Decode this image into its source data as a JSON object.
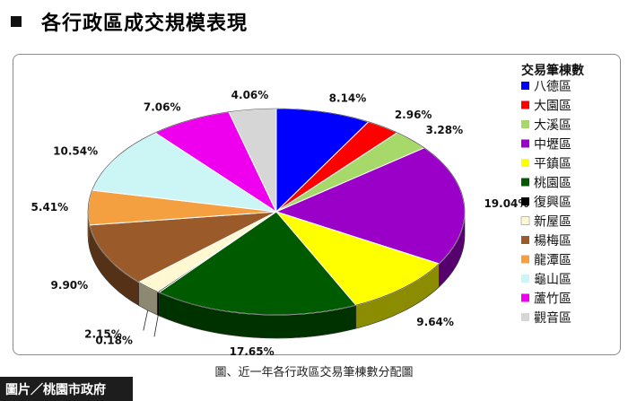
{
  "header": {
    "title": "各行政區成交規模表現"
  },
  "chart_data": {
    "type": "pie",
    "legend_title": "交易筆棟數",
    "legend_position": "right",
    "series": [
      {
        "name": "八德區",
        "value": 8.14,
        "label": "8.14%",
        "color": "#0000ff"
      },
      {
        "name": "大園區",
        "value": 2.96,
        "label": "2.96%",
        "color": "#ff0000"
      },
      {
        "name": "大溪區",
        "value": 3.28,
        "label": "3.28%",
        "color": "#a6d96a"
      },
      {
        "name": "中壢區",
        "value": 19.04,
        "label": "19.04%",
        "color": "#9b00c8"
      },
      {
        "name": "平鎮區",
        "value": 9.64,
        "label": "9.64%",
        "color": "#ffff00"
      },
      {
        "name": "桃園區",
        "value": 17.65,
        "label": "17.65%",
        "color": "#005a00"
      },
      {
        "name": "復興區",
        "value": 0.18,
        "label": "0.18%",
        "color": "#000000"
      },
      {
        "name": "新屋區",
        "value": 2.15,
        "label": "2.15%",
        "color": "#fff8d0"
      },
      {
        "name": "楊梅區",
        "value": 9.9,
        "label": "9.90%",
        "color": "#9a5a2a"
      },
      {
        "name": "龍潭區",
        "value": 5.41,
        "label": "5.41%",
        "color": "#f5a040"
      },
      {
        "name": "龜山區",
        "value": 10.54,
        "label": "10.54%",
        "color": "#ccf5f5"
      },
      {
        "name": "蘆竹區",
        "value": 7.06,
        "label": "7.06%",
        "color": "#ee00ee"
      },
      {
        "name": "觀音區",
        "value": 4.06,
        "label": "4.06%",
        "color": "#d6d6d6"
      }
    ]
  },
  "caption": "圖、近一年各行政區交易筆棟數分配圖",
  "credit": "圖片／桃園市政府"
}
